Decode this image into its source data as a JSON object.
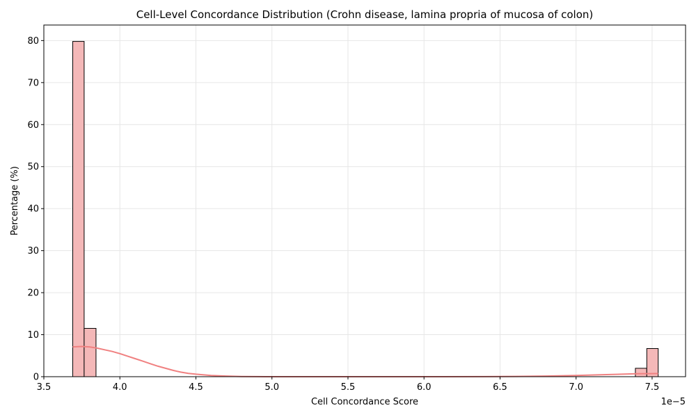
{
  "chart_data": {
    "type": "bar",
    "title": "Cell-Level Concordance Distribution (Crohn disease, lamina propria of mucosa of colon)",
    "xlabel": "Cell Concordance Score",
    "ylabel": "Percentage (%)",
    "x_offset_label": "1e−5",
    "xlim": [
      3.5,
      7.72
    ],
    "ylim": [
      0,
      83.7
    ],
    "x_ticks": [
      3.5,
      4.0,
      4.5,
      5.0,
      5.5,
      6.0,
      6.5,
      7.0,
      7.5
    ],
    "x_tick_labels": [
      "3.5",
      "4.0",
      "4.5",
      "5.0",
      "5.5",
      "6.0",
      "6.5",
      "7.0",
      "7.5"
    ],
    "y_ticks": [
      0,
      10,
      20,
      30,
      40,
      50,
      60,
      70,
      80
    ],
    "y_tick_labels": [
      "0",
      "10",
      "20",
      "30",
      "40",
      "50",
      "60",
      "70",
      "80"
    ],
    "grid": true,
    "bins": [
      {
        "x0": 3.69,
        "x1": 3.765,
        "value": 79.8
      },
      {
        "x0": 3.765,
        "x1": 3.843,
        "value": 11.5
      },
      {
        "x0": 7.39,
        "x1": 7.465,
        "value": 2.0
      },
      {
        "x0": 7.465,
        "x1": 7.54,
        "value": 6.7
      }
    ],
    "kde": {
      "x": [
        3.69,
        3.75,
        3.8,
        3.85,
        3.9,
        3.95,
        4.0,
        4.05,
        4.1,
        4.15,
        4.2,
        4.25,
        4.3,
        4.35,
        4.4,
        4.45,
        4.5,
        4.6,
        4.7,
        4.8,
        4.9,
        5.0,
        5.5,
        6.0,
        6.4,
        6.6,
        6.8,
        7.0,
        7.2,
        7.4,
        7.54
      ],
      "y": [
        7.1,
        7.2,
        7.1,
        6.8,
        6.4,
        6.0,
        5.5,
        4.9,
        4.3,
        3.7,
        3.1,
        2.5,
        2.0,
        1.5,
        1.1,
        0.8,
        0.6,
        0.3,
        0.15,
        0.05,
        0.02,
        0.0,
        0.0,
        0.0,
        0.02,
        0.06,
        0.15,
        0.3,
        0.5,
        0.7,
        0.75
      ]
    },
    "colors": {
      "bar_fill": "#f4b8b8",
      "bar_edge": "#000000",
      "kde_line": "#f08080",
      "grid": "#e6e6e6",
      "axis": "#000000"
    }
  }
}
